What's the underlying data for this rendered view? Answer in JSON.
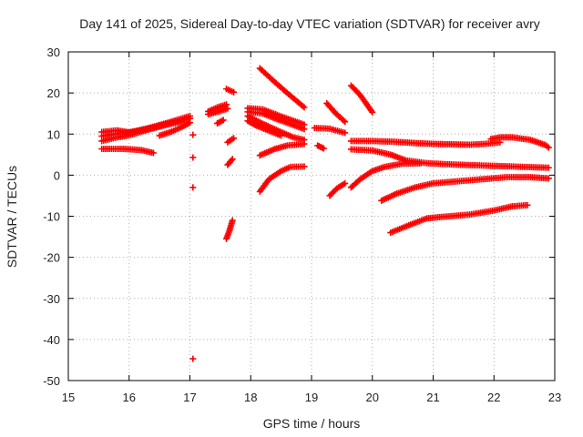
{
  "chart_data": {
    "type": "scatter",
    "title": "Day 141 of 2025, Sidereal Day-to-day VTEC variation (SDTVAR) for receiver avry",
    "xlabel": "GPS time / hours",
    "ylabel": "SDTVAR / TECUs",
    "xlim": [
      15,
      23
    ],
    "ylim": [
      -50,
      30
    ],
    "xticks": [
      "15",
      "16",
      "17",
      "18",
      "19",
      "20",
      "21",
      "22",
      "23"
    ],
    "yticks": [
      "30",
      "20",
      "10",
      "0",
      "-10",
      "-20",
      "-30",
      "-40",
      "-50"
    ],
    "grid": true,
    "marker": "+",
    "color": "#ff0000",
    "series": [
      {
        "name": "s1",
        "points": [
          [
            15.55,
            10.5
          ],
          [
            15.8,
            10.9
          ],
          [
            16.0,
            10.4
          ],
          [
            16.3,
            11.4
          ],
          [
            16.6,
            12.6
          ],
          [
            17.0,
            14.4
          ]
        ]
      },
      {
        "name": "s2",
        "points": [
          [
            15.55,
            9.5
          ],
          [
            15.8,
            10.1
          ],
          [
            16.1,
            10.6
          ],
          [
            16.4,
            11.6
          ],
          [
            16.7,
            12.8
          ],
          [
            17.0,
            13.8
          ]
        ]
      },
      {
        "name": "s3",
        "points": [
          [
            15.55,
            8.3
          ],
          [
            15.8,
            9.2
          ],
          [
            16.0,
            9.7
          ],
          [
            16.3,
            11.0
          ],
          [
            16.6,
            12.2
          ],
          [
            16.85,
            13.0
          ]
        ]
      },
      {
        "name": "s4",
        "points": [
          [
            16.5,
            9.6
          ],
          [
            16.7,
            10.6
          ],
          [
            16.85,
            11.6
          ],
          [
            17.0,
            12.8
          ]
        ]
      },
      {
        "name": "s5",
        "points": [
          [
            15.55,
            6.4
          ],
          [
            15.9,
            6.4
          ],
          [
            16.2,
            6.1
          ],
          [
            16.4,
            5.4
          ]
        ]
      },
      {
        "name": "s6",
        "points": [
          [
            17.3,
            15.5
          ],
          [
            17.45,
            16.5
          ],
          [
            17.6,
            17.2
          ]
        ]
      },
      {
        "name": "s7",
        "points": [
          [
            17.3,
            14.8
          ],
          [
            17.5,
            15.6
          ],
          [
            17.62,
            16.2
          ]
        ]
      },
      {
        "name": "s8",
        "points": [
          [
            17.45,
            12.6
          ],
          [
            17.55,
            13.4
          ]
        ]
      },
      {
        "name": "s9",
        "points": [
          [
            17.6,
            21.0
          ],
          [
            17.72,
            20.2
          ]
        ]
      },
      {
        "name": "s10",
        "points": [
          [
            17.62,
            8.0
          ],
          [
            17.72,
            9.0
          ]
        ]
      },
      {
        "name": "s11",
        "points": [
          [
            17.62,
            2.5
          ],
          [
            17.7,
            3.9
          ]
        ]
      },
      {
        "name": "s12",
        "points": [
          [
            17.6,
            -15.5
          ],
          [
            17.65,
            -13.5
          ],
          [
            17.7,
            -11.0
          ]
        ]
      },
      {
        "name": "s13",
        "points": [
          [
            18.15,
            26.0
          ],
          [
            18.4,
            22.6
          ],
          [
            18.6,
            20.0
          ],
          [
            18.88,
            16.5
          ]
        ]
      },
      {
        "name": "s14",
        "points": [
          [
            17.95,
            16.3
          ],
          [
            18.2,
            16.0
          ],
          [
            18.5,
            14.3
          ],
          [
            18.88,
            12.3
          ]
        ]
      },
      {
        "name": "s15",
        "points": [
          [
            17.95,
            15.4
          ],
          [
            18.2,
            15.0
          ],
          [
            18.4,
            13.8
          ],
          [
            18.88,
            11.2
          ]
        ]
      },
      {
        "name": "s16",
        "points": [
          [
            17.95,
            14.4
          ],
          [
            18.2,
            12.5
          ],
          [
            18.45,
            10.8
          ],
          [
            18.7,
            9.2
          ],
          [
            18.88,
            8.6
          ]
        ]
      },
      {
        "name": "s17",
        "points": [
          [
            17.95,
            13.2
          ],
          [
            18.1,
            12.0
          ],
          [
            18.3,
            10.8
          ],
          [
            18.5,
            9.6
          ]
        ]
      },
      {
        "name": "s18",
        "points": [
          [
            18.15,
            4.8
          ],
          [
            18.4,
            6.4
          ],
          [
            18.6,
            7.2
          ],
          [
            18.88,
            7.6
          ]
        ]
      },
      {
        "name": "s19",
        "points": [
          [
            18.15,
            -4.0
          ],
          [
            18.3,
            -1.0
          ],
          [
            18.5,
            1.0
          ],
          [
            18.65,
            2.0
          ],
          [
            18.88,
            2.1
          ]
        ]
      },
      {
        "name": "s20",
        "points": [
          [
            19.25,
            17.5
          ],
          [
            19.4,
            15.0
          ],
          [
            19.55,
            13.0
          ]
        ]
      },
      {
        "name": "s21",
        "points": [
          [
            19.05,
            11.5
          ],
          [
            19.3,
            11.3
          ],
          [
            19.55,
            10.3
          ]
        ]
      },
      {
        "name": "s22",
        "points": [
          [
            19.1,
            7.2
          ],
          [
            19.2,
            6.5
          ]
        ]
      },
      {
        "name": "s23",
        "points": [
          [
            19.65,
            21.8
          ],
          [
            19.8,
            19.5
          ],
          [
            20.0,
            15.3
          ]
        ]
      },
      {
        "name": "s24",
        "points": [
          [
            19.3,
            -5.0
          ],
          [
            19.42,
            -3.2
          ],
          [
            19.55,
            -2.0
          ]
        ]
      },
      {
        "name": "s25",
        "points": [
          [
            19.65,
            -3.0
          ],
          [
            19.8,
            -1.0
          ],
          [
            20.0,
            1.0
          ],
          [
            20.2,
            2.0
          ],
          [
            20.5,
            2.8
          ],
          [
            20.8,
            2.9
          ]
        ]
      },
      {
        "name": "s26",
        "points": [
          [
            19.65,
            8.3
          ],
          [
            20.0,
            8.3
          ],
          [
            20.4,
            8.1
          ],
          [
            20.7,
            7.8
          ],
          [
            21.0,
            7.6
          ],
          [
            21.3,
            7.5
          ],
          [
            21.6,
            7.4
          ],
          [
            21.85,
            7.6
          ],
          [
            22.1,
            8.0
          ]
        ]
      },
      {
        "name": "s27",
        "points": [
          [
            19.65,
            6.3
          ],
          [
            20.0,
            6.0
          ],
          [
            20.3,
            5.0
          ],
          [
            20.55,
            3.6
          ],
          [
            20.9,
            2.9
          ],
          [
            21.3,
            2.6
          ],
          [
            21.7,
            2.4
          ],
          [
            22.1,
            2.2
          ],
          [
            22.5,
            2.0
          ],
          [
            22.9,
            1.8
          ]
        ]
      },
      {
        "name": "s28",
        "points": [
          [
            21.95,
            8.8
          ],
          [
            22.1,
            9.2
          ],
          [
            22.3,
            9.2
          ],
          [
            22.6,
            8.6
          ],
          [
            22.85,
            7.3
          ],
          [
            22.9,
            6.7
          ]
        ]
      },
      {
        "name": "s29",
        "points": [
          [
            20.15,
            -6.2
          ],
          [
            20.4,
            -4.5
          ],
          [
            20.7,
            -3.0
          ],
          [
            21.0,
            -2.0
          ],
          [
            21.4,
            -1.5
          ],
          [
            21.8,
            -1.0
          ],
          [
            22.2,
            -0.5
          ],
          [
            22.6,
            -0.5
          ],
          [
            22.9,
            -0.8
          ]
        ]
      },
      {
        "name": "s30",
        "points": [
          [
            20.3,
            -14.0
          ],
          [
            20.6,
            -12.2
          ],
          [
            20.9,
            -10.5
          ],
          [
            21.2,
            -10.1
          ],
          [
            21.6,
            -9.6
          ],
          [
            22.0,
            -8.6
          ],
          [
            22.3,
            -7.6
          ],
          [
            22.55,
            -7.3
          ]
        ]
      },
      {
        "name": "s31",
        "points": [
          [
            17.05,
            9.8
          ],
          [
            17.05,
            4.3
          ],
          [
            17.05,
            -3.0
          ],
          [
            17.05,
            -44.7
          ]
        ]
      }
    ]
  }
}
